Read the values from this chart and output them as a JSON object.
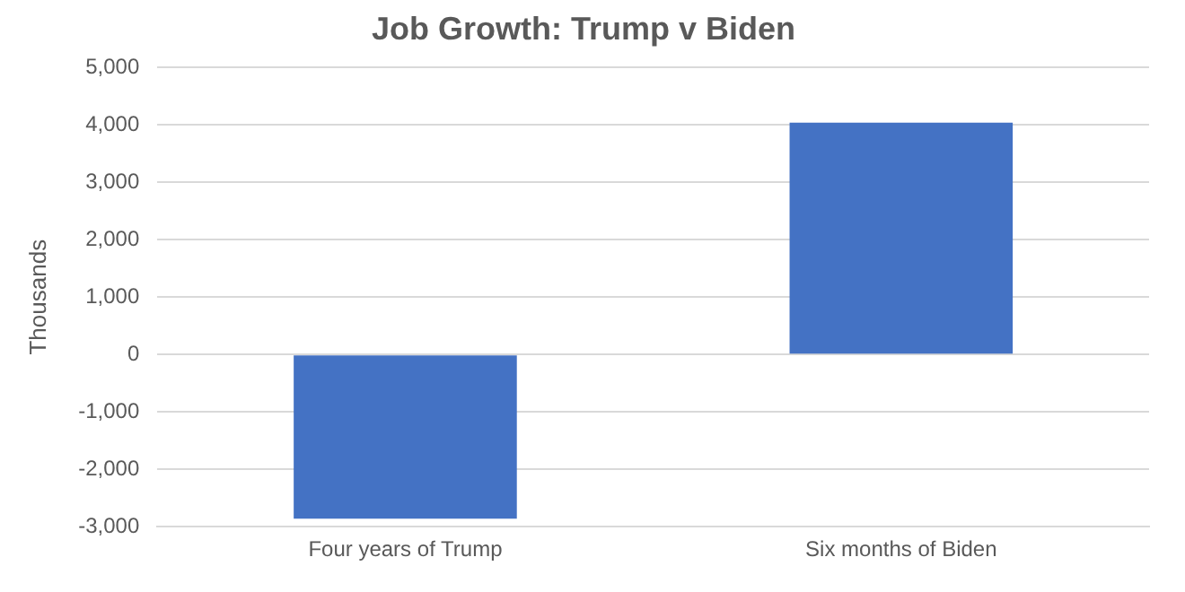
{
  "chart_data": {
    "type": "bar",
    "title": "Job Growth: Trump v Biden",
    "ylabel": "Thousands",
    "categories": [
      "Four years of Trump",
      "Six months of Biden"
    ],
    "values": [
      -2860,
      4040
    ],
    "color": "#4472c4",
    "ylim": [
      -3000,
      5000
    ],
    "yticks": [
      {
        "value": -3000,
        "label": "-3,000"
      },
      {
        "value": -2000,
        "label": "-2,000"
      },
      {
        "value": -1000,
        "label": "-1,000"
      },
      0,
      {
        "value": 1000,
        "label": "1,000"
      },
      {
        "value": 2000,
        "label": "2,000"
      },
      {
        "value": 3000,
        "label": "3,000"
      },
      {
        "value": 4000,
        "label": "4,000"
      },
      {
        "value": 5000,
        "label": "5,000"
      }
    ],
    "grid": "y"
  }
}
